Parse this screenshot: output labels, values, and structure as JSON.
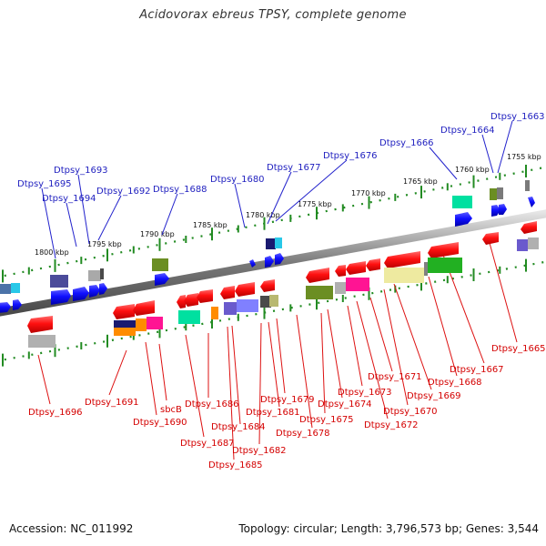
{
  "title": "Acidovorax ebreus TPSY, complete genome",
  "footer": {
    "accession": "Accession: NC_011992",
    "info": "Topology: circular; Length: 3,796,573 bp; Genes: 3,544"
  },
  "kbp_labels": [
    "1755 kbp",
    "1760 kbp",
    "1765 kbp",
    "1770 kbp",
    "1775 kbp",
    "1780 kbp",
    "1785 kbp",
    "1790 kbp",
    "1795 kbp",
    "1800 kbp"
  ],
  "top_labels": [
    "Dtpsy_1663",
    "Dtpsy_1664",
    "Dtpsy_1666",
    "Dtpsy_1676",
    "Dtpsy_1677",
    "Dtpsy_1680",
    "Dtpsy_1688",
    "Dtpsy_1692",
    "Dtpsy_1693",
    "Dtpsy_1694",
    "Dtpsy_1695"
  ],
  "bottom_labels": [
    "Dtpsy_1665",
    "Dtpsy_1667",
    "Dtpsy_1668",
    "Dtpsy_1669",
    "Dtpsy_1670",
    "Dtpsy_1671",
    "Dtpsy_1672",
    "Dtpsy_1673",
    "Dtpsy_1674",
    "Dtpsy_1675",
    "Dtpsy_1678",
    "Dtpsy_1679",
    "Dtpsy_1681",
    "Dtpsy_1682",
    "Dtpsy_1684",
    "Dtpsy_1685",
    "Dtpsy_1686",
    "Dtpsy_1687",
    "Dtpsy_1690",
    "sbcB",
    "Dtpsy_1691",
    "Dtpsy_1696"
  ]
}
